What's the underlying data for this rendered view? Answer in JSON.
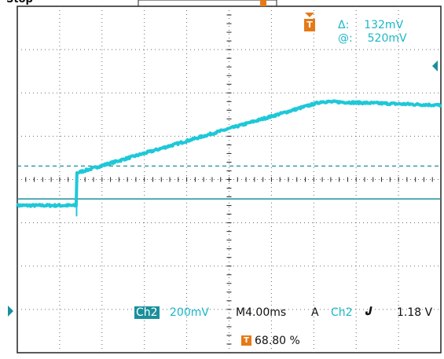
{
  "app": {
    "status_text": "Stop"
  },
  "colors": {
    "trace": "#1ec8d8",
    "reference": "#1b8f9b",
    "marker": "#e67a16",
    "grid": "#6a6a6a",
    "frame": "#222222",
    "background": "#ffffff"
  },
  "cursors": {
    "delta_label": "Δ:",
    "delta_value": "132mV",
    "at_label": "@:",
    "at_value": "520mV"
  },
  "channel": {
    "name": "Ch2",
    "scale": "200mV"
  },
  "horizontal": {
    "timebase": "M4.00ms",
    "trigger_position": "68.80 %"
  },
  "trigger": {
    "mode": "A",
    "source": "Ch2",
    "slope_icon": "rising-edge-icon",
    "slope_glyph": "𝑱",
    "level": "1.18 V"
  },
  "markers": {
    "trigger_marker_icon": "trigger-marker-icon",
    "trigger_glyph": "T",
    "ground_marker_icon": "ground-marker-icon",
    "ground_glyph": "◀"
  },
  "waveform": {
    "divisions_x": 10,
    "divisions_y": 8,
    "baseline_div": -0.6,
    "rise_start_div": 1.4,
    "rise_end_div": 7.2,
    "peak_div": 1.7
  }
}
